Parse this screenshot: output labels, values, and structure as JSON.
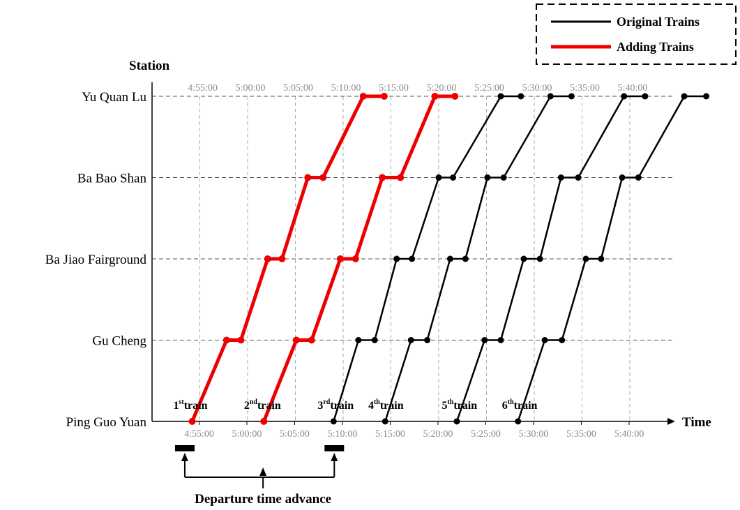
{
  "chart_data": {
    "type": "line",
    "title": "",
    "xlabel": "Time",
    "ylabel": "Station",
    "stations": [
      "Ping Guo Yuan",
      "Gu Cheng",
      "Ba Jiao Fairground",
      "Ba Bao Shan",
      "Yu Quan Lu"
    ],
    "x_ticks_top": [
      "4:55:00",
      "5:00:00",
      "5:05:00",
      "5:10:00",
      "5:15:00",
      "5:20:00",
      "5:25:00",
      "5:30:00",
      "5:35:00",
      "5:40:00"
    ],
    "x_ticks_bottom": [
      "4:55:00",
      "5:00:00",
      "5:05:00",
      "5:10:00",
      "5:15:00",
      "5:20:00",
      "5:25:00",
      "5:30:00",
      "5:35:00",
      "5:40:00"
    ],
    "grid": true,
    "legend_position": "top-right",
    "legend": [
      {
        "name": "Original Trains",
        "color": "#000000"
      },
      {
        "name": "Adding Trains",
        "color": "#ee0000"
      }
    ],
    "series": [
      {
        "name": "Adding Trains",
        "color": "#ee0000",
        "width": 5,
        "points": [
          [
            4.2,
            "Ping Guo Yuan"
          ],
          [
            7.8,
            "Gu Cheng"
          ],
          [
            9.3,
            "Gu Cheng"
          ],
          [
            12.1,
            "Ba Jiao Fairground"
          ],
          [
            13.6,
            "Ba Jiao Fairground"
          ],
          [
            16.3,
            "Ba Bao Shan"
          ],
          [
            17.9,
            "Ba Bao Shan"
          ],
          [
            22.1,
            "Yu Quan Lu"
          ],
          [
            24.3,
            "Yu Quan Lu"
          ]
        ]
      },
      {
        "name": "Adding Trains",
        "color": "#ee0000",
        "width": 5,
        "points": [
          [
            11.7,
            "Ping Guo Yuan"
          ],
          [
            15.1,
            "Gu Cheng"
          ],
          [
            16.7,
            "Gu Cheng"
          ],
          [
            19.7,
            "Ba Jiao Fairground"
          ],
          [
            21.3,
            "Ba Jiao Fairground"
          ],
          [
            24.1,
            "Ba Bao Shan"
          ],
          [
            26.0,
            "Ba Bao Shan"
          ],
          [
            29.6,
            "Yu Quan Lu"
          ],
          [
            31.7,
            "Yu Quan Lu"
          ]
        ]
      },
      {
        "name": "Original Trains",
        "color": "#000000",
        "width": 2.5,
        "points": [
          [
            19.0,
            "Ping Guo Yuan"
          ],
          [
            21.6,
            "Gu Cheng"
          ],
          [
            23.3,
            "Gu Cheng"
          ],
          [
            25.6,
            "Ba Jiao Fairground"
          ],
          [
            27.2,
            "Ba Jiao Fairground"
          ],
          [
            30.0,
            "Ba Bao Shan"
          ],
          [
            31.5,
            "Ba Bao Shan"
          ],
          [
            36.5,
            "Yu Quan Lu"
          ],
          [
            38.6,
            "Yu Quan Lu"
          ]
        ]
      },
      {
        "name": "Original Trains",
        "color": "#000000",
        "width": 2.5,
        "points": [
          [
            24.4,
            "Ping Guo Yuan"
          ],
          [
            27.1,
            "Gu Cheng"
          ],
          [
            28.8,
            "Gu Cheng"
          ],
          [
            31.2,
            "Ba Jiao Fairground"
          ],
          [
            32.8,
            "Ba Jiao Fairground"
          ],
          [
            35.1,
            "Ba Bao Shan"
          ],
          [
            36.8,
            "Ba Bao Shan"
          ],
          [
            41.7,
            "Yu Quan Lu"
          ],
          [
            43.9,
            "Yu Quan Lu"
          ]
        ]
      },
      {
        "name": "Original Trains",
        "color": "#000000",
        "width": 2.5,
        "points": [
          [
            31.9,
            "Ping Guo Yuan"
          ],
          [
            34.8,
            "Gu Cheng"
          ],
          [
            36.5,
            "Gu Cheng"
          ],
          [
            38.9,
            "Ba Jiao Fairground"
          ],
          [
            40.6,
            "Ba Jiao Fairground"
          ],
          [
            42.8,
            "Ba Bao Shan"
          ],
          [
            44.6,
            "Ba Bao Shan"
          ],
          [
            49.4,
            "Yu Quan Lu"
          ],
          [
            51.6,
            "Yu Quan Lu"
          ]
        ]
      },
      {
        "name": "Original Trains",
        "color": "#000000",
        "width": 2.5,
        "points": [
          [
            38.3,
            "Ping Guo Yuan"
          ],
          [
            41.1,
            "Gu Cheng"
          ],
          [
            42.9,
            "Gu Cheng"
          ],
          [
            45.4,
            "Ba Jiao Fairground"
          ],
          [
            47.0,
            "Ba Jiao Fairground"
          ],
          [
            49.2,
            "Ba Bao Shan"
          ],
          [
            50.9,
            "Ba Bao Shan"
          ],
          [
            55.7,
            "Yu Quan Lu"
          ],
          [
            58.0,
            "Yu Quan Lu"
          ]
        ]
      }
    ],
    "train_labels": [
      {
        "num": "1",
        "sup": "st",
        "word": "train",
        "t": 3.1
      },
      {
        "num": "2",
        "sup": "nd",
        "word": "train",
        "t": 10.5
      },
      {
        "num": "3",
        "sup": "rd",
        "word": "train",
        "t": 18.2
      },
      {
        "num": "4",
        "sup": "th",
        "word": "train",
        "t": 23.5
      },
      {
        "num": "5",
        "sup": "th",
        "word": "train",
        "t": 31.2
      },
      {
        "num": "6",
        "sup": "th",
        "word": "train",
        "t": 37.5
      }
    ],
    "annotation": {
      "text": "Departure time advance",
      "from_t": 3.5,
      "to_t": 19.0
    }
  }
}
